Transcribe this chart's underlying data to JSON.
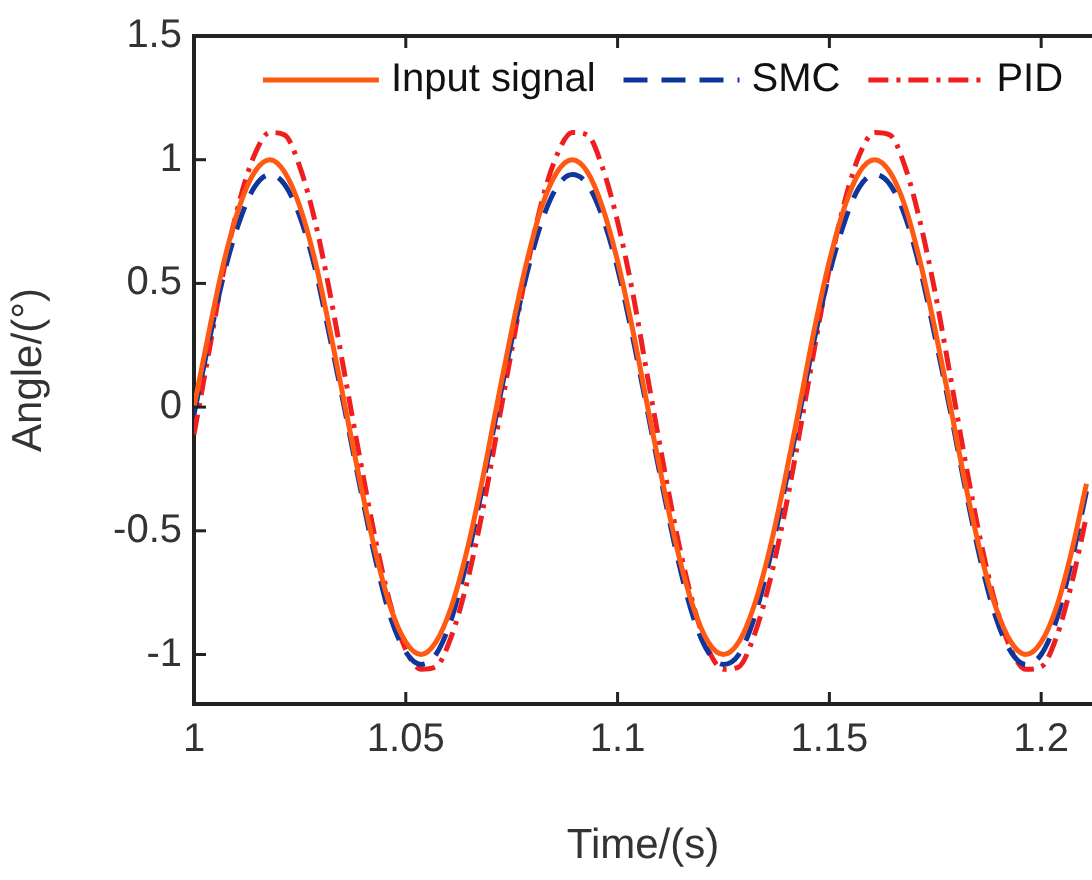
{
  "chart_data": {
    "type": "line",
    "xlabel": "Time/(s)",
    "ylabel": "Angle/(°)",
    "x": [
      1,
      1.0036,
      1.0071,
      1.0107,
      1.0143,
      1.0179,
      1.0214,
      1.025,
      1.0286,
      1.0321,
      1.0357,
      1.0393,
      1.0429,
      1.0464,
      1.05,
      1.0536,
      1.0571,
      1.0607,
      1.0643,
      1.0679,
      1.0714,
      1.075,
      1.0786,
      1.0821,
      1.0857,
      1.0893,
      1.0929,
      1.0964,
      1.1,
      1.1036,
      1.1071,
      1.1107,
      1.1143,
      1.1179,
      1.1214,
      1.125,
      1.1286,
      1.1321,
      1.1357,
      1.1393,
      1.1429,
      1.1464,
      1.15,
      1.1536,
      1.1571,
      1.1607,
      1.1643,
      1.1679,
      1.1714,
      1.175,
      1.1786,
      1.1821,
      1.1857,
      1.1893,
      1.1929,
      1.1964,
      1.2,
      1.2036,
      1.2071,
      1.2107
    ],
    "series": [
      {
        "name": "Input signal",
        "color": "#ff5a14",
        "line_style": "solid",
        "values": [
          0,
          0.31,
          0.59,
          0.81,
          0.95,
          1,
          0.95,
          0.81,
          0.59,
          0.31,
          0,
          -0.31,
          -0.59,
          -0.81,
          -0.95,
          -1,
          -0.95,
          -0.81,
          -0.59,
          -0.31,
          0,
          0.31,
          0.59,
          0.81,
          0.95,
          1,
          0.95,
          0.81,
          0.59,
          0.31,
          0,
          -0.31,
          -0.59,
          -0.81,
          -0.95,
          -1,
          -0.95,
          -0.81,
          -0.59,
          -0.31,
          0,
          0.31,
          0.59,
          0.81,
          0.95,
          1,
          0.95,
          0.81,
          0.59,
          0.31,
          0,
          -0.31,
          -0.59,
          -0.81,
          -0.95,
          -1,
          -0.95,
          -0.81,
          -0.59,
          -0.31
        ]
      },
      {
        "name": "SMC",
        "color": "#10359c",
        "line_style": "dashed",
        "values": [
          -0.03,
          0.27,
          0.54,
          0.75,
          0.89,
          0.94,
          0.9,
          0.77,
          0.56,
          0.28,
          -0.02,
          -0.33,
          -0.62,
          -0.85,
          -0.99,
          -1.04,
          -1,
          -0.86,
          -0.63,
          -0.34,
          -0.03,
          0.27,
          0.54,
          0.75,
          0.89,
          0.94,
          0.9,
          0.77,
          0.56,
          0.28,
          -0.02,
          -0.33,
          -0.62,
          -0.85,
          -0.99,
          -1.04,
          -1,
          -0.86,
          -0.63,
          -0.34,
          -0.03,
          0.27,
          0.54,
          0.75,
          0.89,
          0.94,
          0.9,
          0.77,
          0.56,
          0.28,
          -0.02,
          -0.33,
          -0.62,
          -0.85,
          -0.99,
          -1.04,
          -1,
          -0.86,
          -0.63,
          -0.34
        ]
      },
      {
        "name": "PID",
        "color": "#f01e1e",
        "line_style": "dashdot",
        "values": [
          -0.11,
          0.23,
          0.56,
          0.83,
          1.02,
          1.11,
          1.1,
          0.97,
          0.75,
          0.46,
          0.12,
          -0.22,
          -0.54,
          -0.8,
          -0.98,
          -1.06,
          -1.05,
          -0.93,
          -0.72,
          -0.44,
          -0.11,
          0.23,
          0.56,
          0.83,
          1.02,
          1.11,
          1.1,
          0.97,
          0.75,
          0.46,
          0.12,
          -0.22,
          -0.54,
          -0.8,
          -0.98,
          -1.06,
          -1.05,
          -0.93,
          -0.72,
          -0.44,
          -0.11,
          0.23,
          0.56,
          0.83,
          1.02,
          1.11,
          1.1,
          0.97,
          0.75,
          0.46,
          0.12,
          -0.22,
          -0.54,
          -0.8,
          -0.98,
          -1.06,
          -1.05,
          -0.93,
          -0.72,
          -0.44
        ]
      }
    ],
    "xlim": [
      1,
      1.212
    ],
    "xticks": [
      1,
      1.05,
      1.1,
      1.15,
      1.2
    ],
    "ylim": [
      -1.2,
      1.5
    ],
    "yticks": [
      -1,
      -0.5,
      0,
      0.5,
      1,
      1.5
    ],
    "grid": false,
    "legend": "top",
    "marker": "none"
  }
}
